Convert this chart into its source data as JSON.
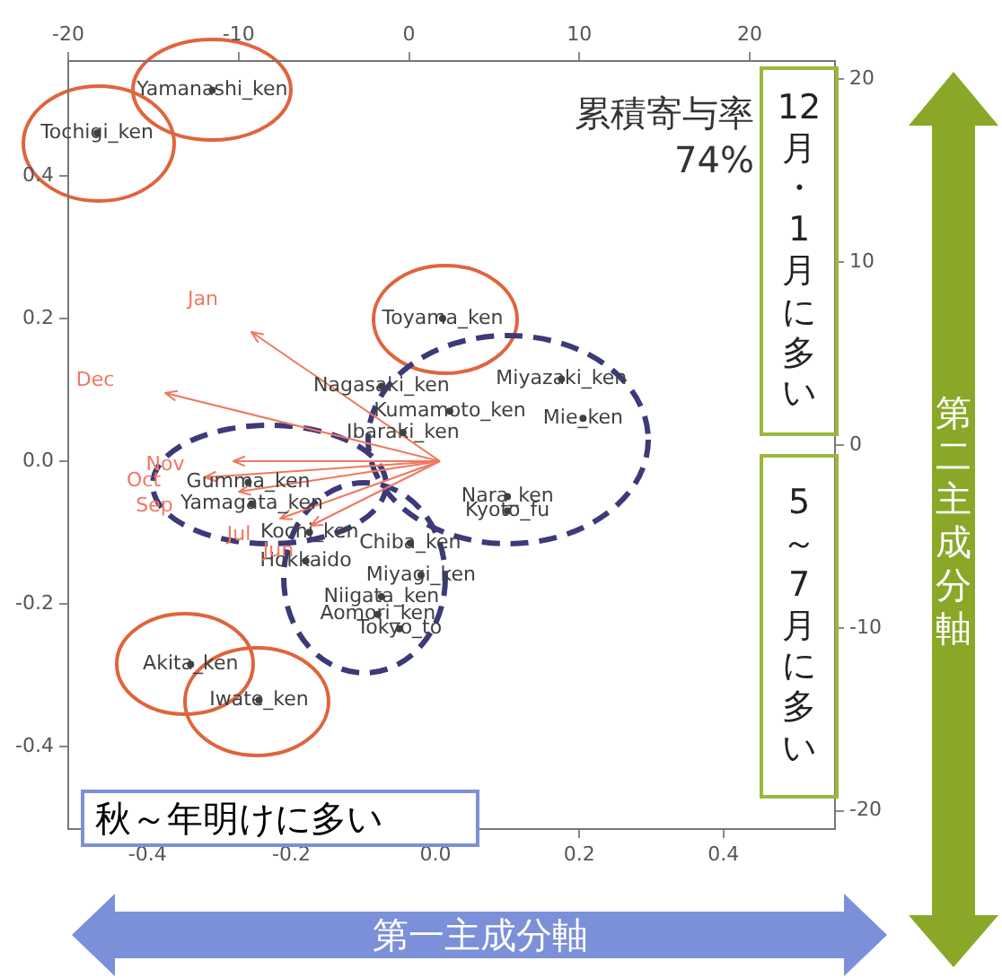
{
  "chart_data": {
    "type": "scatter",
    "xlabel": "第一主成分軸",
    "y2label": "第二主成分軸",
    "annotations": [
      "累積寄与率 74%",
      "12月・1月に多い",
      "5～7月に多い",
      "秋～年明けに多い",
      "Jan",
      "Dec",
      "Nov",
      "Oct",
      "Sep",
      "Jul",
      "Jun"
    ],
    "xlim": [
      -0.51,
      0.555
    ],
    "ylim": [
      -0.516,
      0.561
    ],
    "xticks": [
      -0.4,
      -0.2,
      {
        "value": 0,
        "label": "0.0"
      },
      0.2,
      0.4
    ],
    "yticks": [
      -0.4,
      -0.2,
      {
        "value": 0,
        "label": "0.0"
      },
      0.2,
      0.4
    ],
    "x2lim": [
      -20,
      25
    ],
    "x2ticks": [
      -20,
      -10,
      0,
      10,
      20
    ],
    "y2lim": [
      -21,
      21
    ],
    "y2ticks": [
      -20,
      -10,
      0,
      10,
      20
    ],
    "marker": "circle",
    "grid": false,
    "legend": false,
    "series": [
      {
        "color": "#404040",
        "x": [
          -0.31,
          -0.47,
          0.01,
          -0.075,
          0.02,
          0.205,
          0.175,
          -0.045,
          0.1,
          0.1,
          -0.26,
          -0.255,
          -0.175,
          -0.035,
          -0.18,
          -0.02,
          -0.075,
          -0.08,
          -0.05,
          -0.34,
          -0.245
        ],
        "values": [
          0.52,
          0.46,
          0.2,
          0.105,
          0.07,
          0.06,
          0.115,
          0.04,
          -0.07,
          -0.05,
          -0.03,
          -0.06,
          -0.1,
          -0.115,
          -0.14,
          -0.16,
          -0.19,
          -0.215,
          -0.235,
          -0.285,
          -0.335
        ],
        "value_labels": [
          "Yamanashi_ken",
          "Tochigi_ken",
          "Toyama_ken",
          "Nagasaki_ken",
          "Kumamoto_ken",
          "Mie_ken",
          "Miyazaki_ken",
          "Ibaraki_ken",
          "Kyoto_fu",
          "Nara_ken",
          "Gumma_ken",
          "Yamagata_ken",
          "Kochi_ken",
          "Chiba_ken",
          "Hokkaido",
          "Miyagi_ken",
          "Niigata_ken",
          "Aomori_ken",
          "Tokyo_to",
          "Akita_ken",
          "Iwate_ken"
        ]
      }
    ]
  }
}
